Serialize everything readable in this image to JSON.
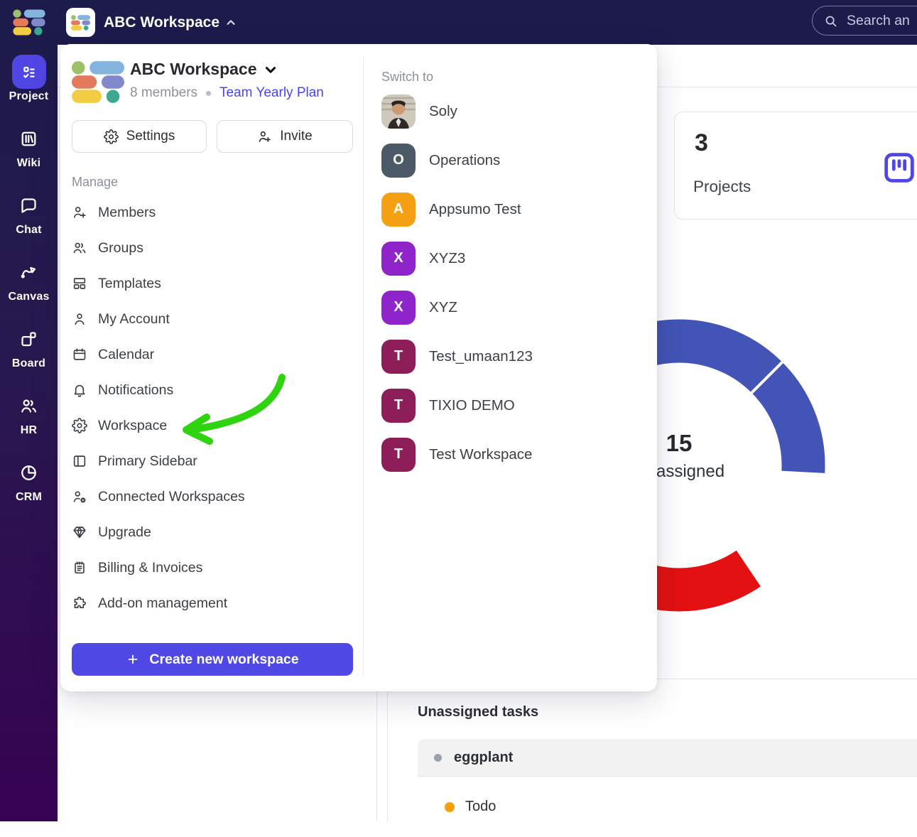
{
  "topbar": {
    "workspace_name": "ABC Workspace",
    "search_text": "Search an"
  },
  "sidebar": [
    {
      "label": "Project",
      "icon": "checklist",
      "active": true
    },
    {
      "label": "Wiki",
      "icon": "books"
    },
    {
      "label": "Chat",
      "icon": "chat"
    },
    {
      "label": "Canvas",
      "icon": "canvas"
    },
    {
      "label": "Board",
      "icon": "board"
    },
    {
      "label": "HR",
      "icon": "people"
    },
    {
      "label": "CRM",
      "icon": "pie"
    }
  ],
  "popup": {
    "title": "ABC Workspace",
    "members": "8 members",
    "plan": "Team Yearly Plan",
    "settings_label": "Settings",
    "invite_label": "Invite",
    "manage_label": "Manage",
    "menu": [
      {
        "label": "Members",
        "icon": "person-add"
      },
      {
        "label": "Groups",
        "icon": "people"
      },
      {
        "label": "Templates",
        "icon": "templates"
      },
      {
        "label": "My Account",
        "icon": "person"
      },
      {
        "label": "Calendar",
        "icon": "calendar"
      },
      {
        "label": "Notifications",
        "icon": "bell"
      },
      {
        "label": "Workspace",
        "icon": "gear"
      },
      {
        "label": "Primary Sidebar",
        "icon": "sidebar-layout"
      },
      {
        "label": "Connected Workspaces",
        "icon": "person-gear"
      },
      {
        "label": "Upgrade",
        "icon": "diamond"
      },
      {
        "label": "Billing & Invoices",
        "icon": "receipt"
      },
      {
        "label": "Add-on management",
        "icon": "puzzle"
      }
    ],
    "create_label": "Create new workspace",
    "switch_label": "Switch to",
    "workspaces": [
      {
        "name": "Soly",
        "avatar": "photo"
      },
      {
        "name": "Operations",
        "initial": "O",
        "color": "#4b5a66"
      },
      {
        "name": "Appsumo Test",
        "initial": "A",
        "color": "#f5a013"
      },
      {
        "name": "XYZ3",
        "initial": "X",
        "color": "#8e24c9"
      },
      {
        "name": "XYZ",
        "initial": "X",
        "color": "#8e24c9"
      },
      {
        "name": "Test_umaan123",
        "initial": "T",
        "color": "#8e1e5a"
      },
      {
        "name": "TIXIO DEMO",
        "initial": "T",
        "color": "#8e1e5a"
      },
      {
        "name": "Test Workspace",
        "initial": "T",
        "color": "#8e1e5a"
      }
    ]
  },
  "content": {
    "projects_count": "3",
    "projects_label": "Projects",
    "donut_value": "15",
    "donut_label": "assigned",
    "unassigned_title": "Unassigned tasks",
    "group_name": "eggplant",
    "status_label": "Todo"
  },
  "chart_data": {
    "type": "pie",
    "title": "",
    "center_value": 15,
    "center_label_visible": "assigned",
    "note": "donut chart partially hidden behind workspace popup; only right portion visible",
    "visible_segments": [
      {
        "color": "#4254b5",
        "start_deg_from_top": -25,
        "end_deg_from_top": 45
      },
      {
        "color": "#4254b5",
        "start_deg_from_top": 45,
        "end_deg_from_top": 93
      },
      {
        "color": "#e31111",
        "start_deg_from_top": 146,
        "end_deg_from_top": 228
      }
    ],
    "legend_position": "none",
    "grid": false
  },
  "colors": {
    "accent": "#4f46e5",
    "topbar_bg": "#1c1b4b",
    "sidebar_bottom": "#370253",
    "donut_blue": "#4254b5",
    "donut_red": "#e31111",
    "arrow_green": "#2fd30f",
    "link_blue": "#4845f0",
    "todo_orange": "#f5a00b"
  }
}
